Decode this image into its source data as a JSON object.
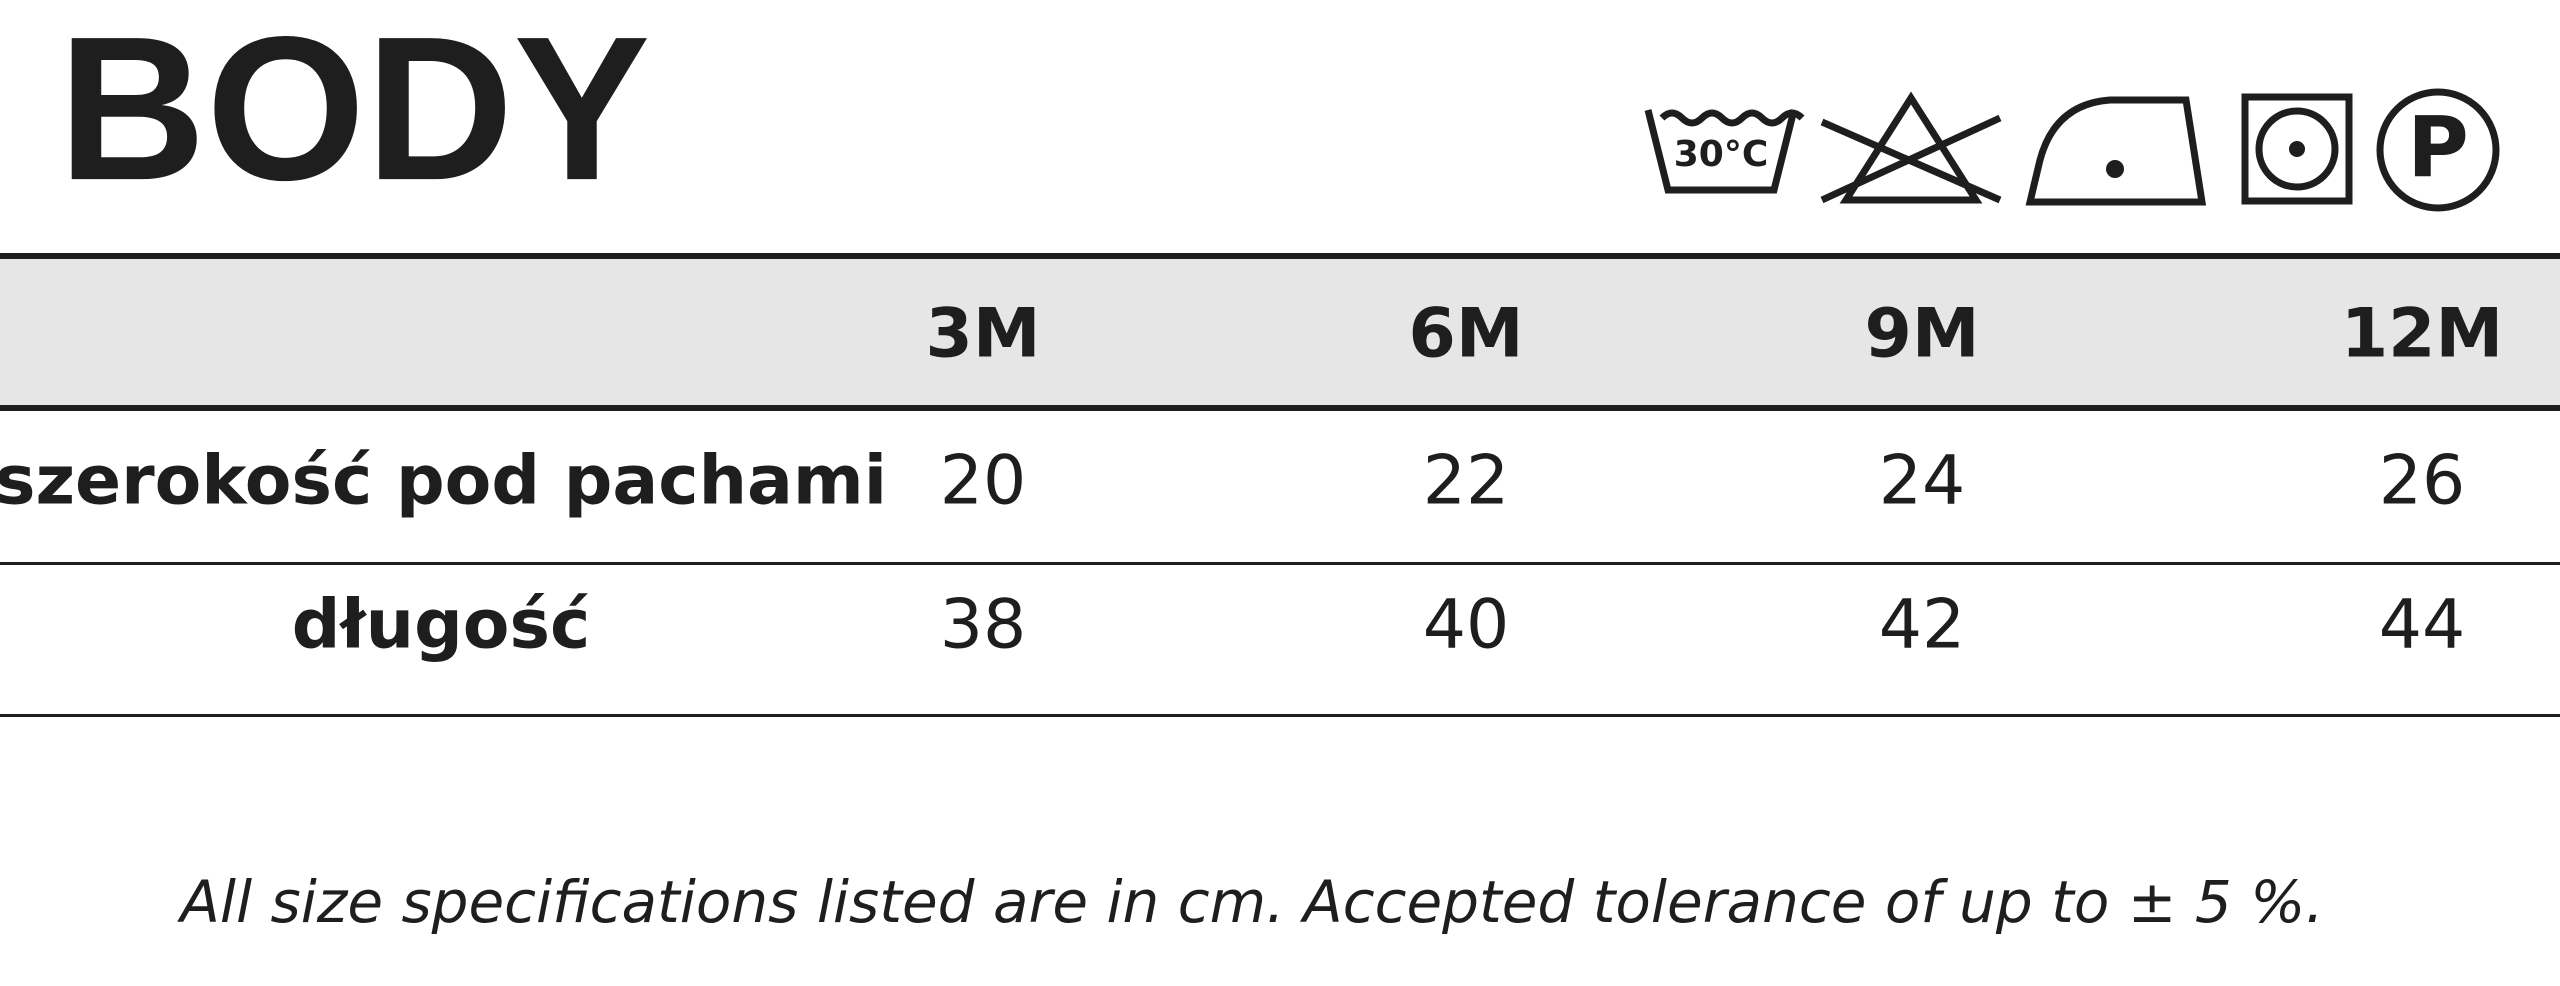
{
  "header": {
    "title": "BODY",
    "care_icons": [
      "30°C",
      "P"
    ]
  },
  "table": {
    "columns": [
      "3M",
      "6M",
      "9M",
      "12M"
    ],
    "rows": [
      {
        "label": "szerokość pod pachami",
        "values": [
          20,
          22,
          24,
          26
        ]
      },
      {
        "label": "długość",
        "values": [
          38,
          40,
          42,
          44
        ]
      }
    ]
  },
  "footnote": "All size specifications listed are in cm. Accepted tolerance of up to ± 5 %."
}
